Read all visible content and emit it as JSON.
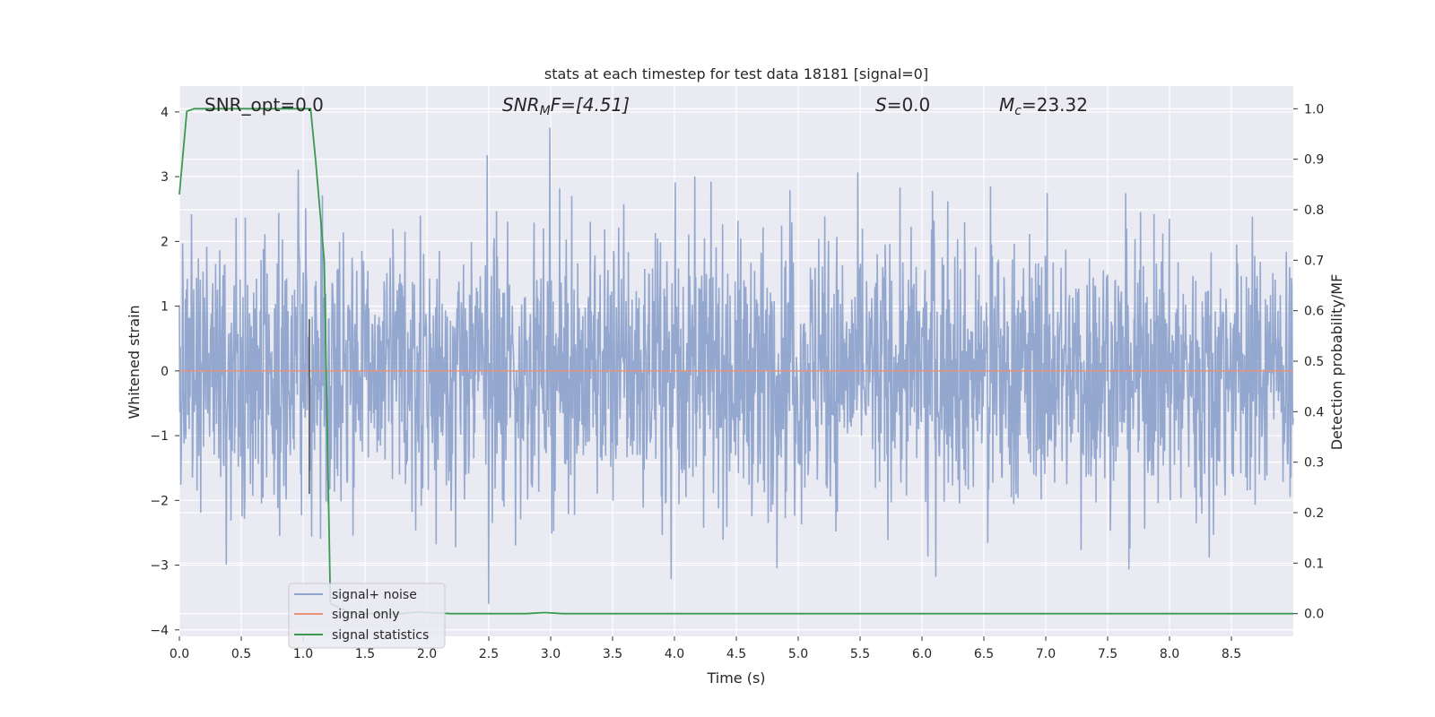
{
  "chart_data": {
    "type": "line",
    "title": "stats at each timestep for test data 18181 [signal=0]",
    "xlabel": "Time (s)",
    "ylabel": "Whitened strain",
    "y2label": "Detection probability/MF",
    "xlim": [
      0,
      9.0
    ],
    "ylim": [
      -4.1,
      4.4
    ],
    "y2lim": [
      -0.045,
      1.045
    ],
    "xticks": [
      "0.0",
      "0.5",
      "1.0",
      "1.5",
      "2.0",
      "2.5",
      "3.0",
      "3.5",
      "4.0",
      "4.5",
      "5.0",
      "5.5",
      "6.0",
      "6.5",
      "7.0",
      "7.5",
      "8.0",
      "8.5"
    ],
    "yticks": [
      "4",
      "3",
      "2",
      "1",
      "0",
      "−1",
      "−2",
      "−3",
      "−4"
    ],
    "y2ticks": [
      "1.0",
      "0.9",
      "0.8",
      "0.7",
      "0.6",
      "0.5",
      "0.4",
      "0.3",
      "0.2",
      "0.1",
      "0.0"
    ],
    "grid": true,
    "legend_position": "lower-left",
    "annotations": {
      "snr_opt": "SNR_opt=0.0",
      "snr_mf_main": "SNR",
      "snr_mf_sub": "M",
      "snr_mf_rest": "F=[4.51]",
      "s_main": "S",
      "s_rest": "=0.0",
      "mc_main": "M",
      "mc_sub": "c",
      "mc_rest": "=23.32"
    },
    "series": [
      {
        "name": "signal+ noise",
        "color": "#8fa4cc",
        "description_axis": "left",
        "noise_envelope": {
          "typical_amplitude": 1.7,
          "peak_max": 4.0,
          "peak_min": -3.6
        }
      },
      {
        "name": "signal only",
        "color": "#e8927a",
        "axis": "left",
        "x": [
          0,
          9.0
        ],
        "y": [
          0,
          0
        ]
      },
      {
        "name": "signal statistics",
        "color": "#3a9a4f",
        "axis": "right",
        "x": [
          0.0,
          0.06,
          0.12,
          0.3,
          0.5,
          0.8,
          1.0,
          1.06,
          1.1,
          1.17,
          1.22,
          1.4,
          1.8,
          1.9,
          2.2,
          2.8,
          2.95,
          3.1,
          4.0,
          5.0,
          6.0,
          7.0,
          8.0,
          9.0
        ],
        "y": [
          0.83,
          0.995,
          1.0,
          1.0,
          1.0,
          1.0,
          1.0,
          1.0,
          0.9,
          0.7,
          0.02,
          0.0,
          0.0,
          0.003,
          0.0,
          0.0,
          0.002,
          0.0,
          0.0,
          0.0,
          0.0,
          0.0,
          0.0,
          0.0
        ]
      }
    ],
    "marker_line": {
      "x": 1.05,
      "y_from": -1.9,
      "y_to": 0.8,
      "color": "#555555"
    }
  }
}
